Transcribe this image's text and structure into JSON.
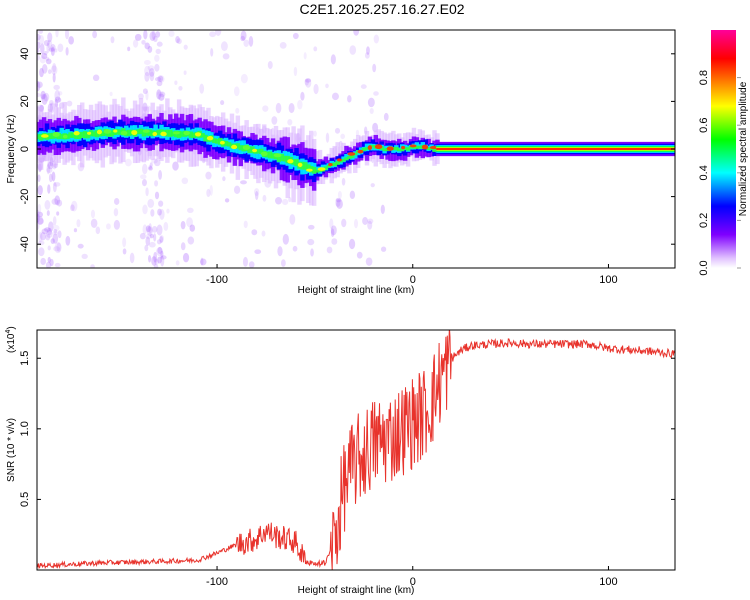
{
  "title": "C2E1.2025.257.16.27.E02",
  "colors": {
    "snr_line": "#e8332c",
    "frame": "#000000",
    "background": "#ffffff"
  },
  "chart_data": [
    {
      "type": "heatmap",
      "name": "spectrogram",
      "xlabel": "Height of straight line (km)",
      "ylabel": "Frequency (Hz)",
      "xlim": [
        -192,
        134
      ],
      "ylim": [
        -50,
        50
      ],
      "xticks": [
        -100,
        0,
        100
      ],
      "xtick_labels": [
        "-100",
        "0",
        "100"
      ],
      "yticks": [
        -40,
        -20,
        0,
        20,
        40
      ],
      "ytick_labels": [
        "-40",
        "-20",
        "0",
        "20",
        "40"
      ],
      "colorbar": {
        "label": "Normalized spectral amplitude",
        "ticks": [
          0.0,
          0.2,
          0.4,
          0.6,
          0.8
        ],
        "tick_labels": [
          "0.0",
          "0.2",
          "0.4",
          "0.6",
          "0.8"
        ],
        "colormap": [
          "#ffffff",
          "#cc99ff",
          "#7f00ff",
          "#0000ff",
          "#00ffff",
          "#00ff00",
          "#ffff00",
          "#ff8000",
          "#ff0000",
          "#ff00aa"
        ]
      },
      "ridge": {
        "description": "Doppler trace frequency (Hz) vs height (km)",
        "x": [
          -192,
          -170,
          -150,
          -130,
          -110,
          -100,
          -90,
          -80,
          -70,
          -60,
          -50,
          -45,
          -40,
          -35,
          -30,
          -25,
          -20,
          -15,
          -10,
          -5,
          0,
          5,
          10,
          134
        ],
        "y": [
          5,
          6,
          7,
          7,
          6,
          3,
          1,
          -1,
          -3,
          -6,
          -9,
          -8,
          -6,
          -4,
          -2,
          0,
          1,
          0,
          0,
          0,
          1,
          1,
          0,
          0
        ]
      }
    },
    {
      "type": "line",
      "name": "snr",
      "xlabel": "Height of straight line (km)",
      "ylabel": "SNR (10 * v/v)",
      "y_scale_label": "(x10",
      "y_scale_exp": "4",
      "xlim": [
        -192,
        134
      ],
      "ylim": [
        0,
        1.7
      ],
      "xticks": [
        -100,
        0,
        100
      ],
      "xtick_labels": [
        "-100",
        "0",
        "100"
      ],
      "yticks": [
        0.5,
        1.0,
        1.5
      ],
      "ytick_labels": [
        "0.5",
        "1.0",
        "1.5"
      ],
      "series": [
        {
          "name": "SNR",
          "x": [
            -192,
            -160,
            -130,
            -110,
            -100,
            -90,
            -80,
            -75,
            -70,
            -65,
            -60,
            -55,
            -50,
            -45,
            -40,
            -35,
            -30,
            -25,
            -20,
            -15,
            -10,
            -5,
            0,
            5,
            10,
            15,
            20,
            25,
            30,
            40,
            50,
            60,
            70,
            80,
            90,
            100,
            110,
            120,
            134
          ],
          "y": [
            0.03,
            0.05,
            0.06,
            0.07,
            0.12,
            0.18,
            0.22,
            0.28,
            0.24,
            0.22,
            0.2,
            0.06,
            0.04,
            0.05,
            0.2,
            0.6,
            0.75,
            0.82,
            0.9,
            0.92,
            0.95,
            1.0,
            1.05,
            1.1,
            1.2,
            1.38,
            1.5,
            1.56,
            1.59,
            1.6,
            1.61,
            1.6,
            1.6,
            1.6,
            1.6,
            1.57,
            1.56,
            1.55,
            1.53
          ]
        }
      ]
    }
  ]
}
